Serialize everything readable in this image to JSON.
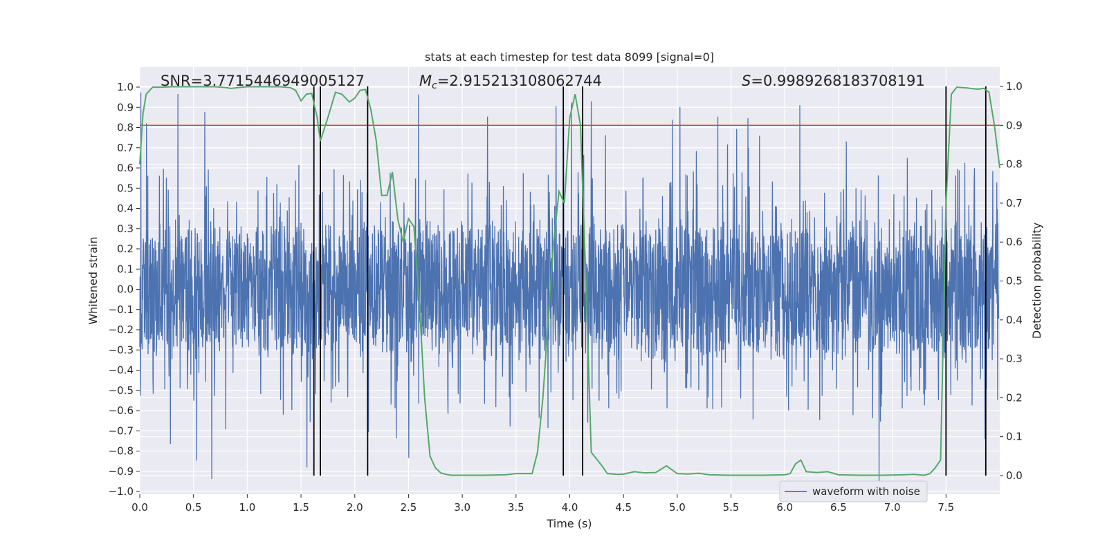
{
  "chart_data": {
    "type": "line",
    "title": "stats at each timestep for test data 8099 [signal=0]",
    "xlabel": "Time (s)",
    "ylabel": "Whitened strain",
    "y2label": "Detection probability",
    "xlim": [
      0.0,
      8.0
    ],
    "ylim": [
      -1.0,
      1.0
    ],
    "y2lim": [
      -0.04,
      1.04
    ],
    "xticks": [
      "0.0",
      "0.5",
      "1.0",
      "1.5",
      "2.0",
      "2.5",
      "3.0",
      "3.5",
      "4.0",
      "4.5",
      "5.0",
      "5.5",
      "6.0",
      "6.5",
      "7.0",
      "7.5"
    ],
    "xtick_values": [
      0,
      0.5,
      1,
      1.5,
      2,
      2.5,
      3,
      3.5,
      4,
      4.5,
      5,
      5.5,
      6,
      6.5,
      7,
      7.5
    ],
    "yticks": [
      "1.0",
      "0.9",
      "0.8",
      "0.7",
      "0.6",
      "0.5",
      "0.4",
      "0.3",
      "0.2",
      "0.1",
      "0.0",
      "−0.1",
      "−0.2",
      "−0.3",
      "−0.4",
      "−0.5",
      "−0.6",
      "−0.7",
      "−0.8",
      "−0.9",
      "−1.0"
    ],
    "ytick_values": [
      1,
      0.9,
      0.8,
      0.7,
      0.6,
      0.5,
      0.4,
      0.3,
      0.2,
      0.1,
      0,
      -0.1,
      -0.2,
      -0.3,
      -0.4,
      -0.5,
      -0.6,
      -0.7,
      -0.8,
      -0.9,
      -1.0
    ],
    "y2ticks": [
      "1.0",
      "0.9",
      "0.8",
      "0.7",
      "0.6",
      "0.5",
      "0.4",
      "0.3",
      "0.2",
      "0.1",
      "0.0"
    ],
    "y2tick_values": [
      1,
      0.9,
      0.8,
      0.7,
      0.6,
      0.5,
      0.4,
      0.3,
      0.2,
      0.1,
      0
    ],
    "annotations": {
      "snr": "SNR=3.7715446949005127",
      "mc_symbol": "M",
      "mc_sub": "c",
      "mc_value": "=2.915213108062744",
      "s_symbol": "S",
      "s_value": "=0.9989268183708191"
    },
    "legend": {
      "label": "waveform with noise",
      "position": "lower-right"
    },
    "threshold": {
      "y2": 0.9,
      "color": "#c44e52"
    },
    "vertical_lines": [
      1.62,
      1.68,
      2.12,
      3.94,
      4.12,
      7.5,
      7.87
    ],
    "colors": {
      "waveform": "#4c72b0",
      "probability": "#55a868",
      "vlines": "#000000",
      "background": "#eaeaf2"
    },
    "series": [
      {
        "name": "waveform with noise",
        "sample_rate_hz": 400,
        "amplitude_core": 0.25,
        "amplitude_peak": 0.98
      },
      {
        "name": "Detection probability",
        "x": [
          0,
          0.03,
          0.06,
          0.12,
          0.2,
          0.3,
          0.4,
          0.5,
          0.6,
          0.7,
          0.8,
          0.85,
          0.95,
          1.0,
          1.1,
          1.2,
          1.3,
          1.4,
          1.45,
          1.5,
          1.55,
          1.6,
          1.65,
          1.68,
          1.75,
          1.82,
          1.88,
          1.95,
          2.0,
          2.05,
          2.1,
          2.15,
          2.2,
          2.25,
          2.3,
          2.35,
          2.4,
          2.45,
          2.5,
          2.55,
          2.6,
          2.65,
          2.7,
          2.75,
          2.8,
          2.85,
          2.9,
          3.0,
          3.2,
          3.4,
          3.5,
          3.65,
          3.7,
          3.75,
          3.8,
          3.85,
          3.9,
          3.95,
          4.0,
          4.05,
          4.1,
          4.15,
          4.2,
          4.3,
          4.35,
          4.45,
          4.5,
          4.6,
          4.7,
          4.8,
          4.9,
          5.0,
          5.1,
          5.2,
          5.3,
          5.5,
          5.8,
          6.0,
          6.05,
          6.1,
          6.15,
          6.2,
          6.3,
          6.4,
          6.5,
          6.7,
          6.9,
          7.1,
          7.2,
          7.3,
          7.35,
          7.4,
          7.45,
          7.5,
          7.55,
          7.6,
          7.7,
          7.75,
          7.8,
          7.85,
          7.9,
          7.95,
          8.0
        ],
        "y": [
          0.8,
          0.93,
          0.98,
          0.998,
          0.998,
          0.999,
          0.999,
          0.999,
          0.999,
          0.999,
          0.997,
          0.995,
          0.998,
          0.999,
          0.999,
          0.999,
          0.999,
          0.997,
          0.99,
          0.963,
          0.98,
          0.982,
          0.92,
          0.86,
          0.92,
          0.985,
          0.98,
          0.96,
          0.97,
          0.99,
          0.992,
          0.94,
          0.86,
          0.72,
          0.72,
          0.78,
          0.66,
          0.6,
          0.66,
          0.64,
          0.45,
          0.2,
          0.05,
          0.02,
          0.007,
          0.003,
          0.001,
          0.001,
          0.001,
          0.002,
          0.005,
          0.005,
          0.06,
          0.2,
          0.4,
          0.6,
          0.73,
          0.7,
          0.92,
          0.98,
          0.9,
          0.5,
          0.06,
          0.025,
          0.005,
          0.003,
          0.004,
          0.01,
          0.007,
          0.008,
          0.025,
          0.005,
          0.004,
          0.006,
          0.002,
          0.001,
          0.001,
          0.002,
          0.005,
          0.03,
          0.04,
          0.01,
          0.008,
          0.01,
          0.002,
          0.001,
          0.001,
          0.002,
          0.003,
          0.001,
          0.005,
          0.02,
          0.04,
          0.7,
          0.98,
          0.998,
          0.996,
          0.994,
          0.993,
          0.995,
          0.985,
          0.9,
          0.79
        ]
      }
    ]
  }
}
